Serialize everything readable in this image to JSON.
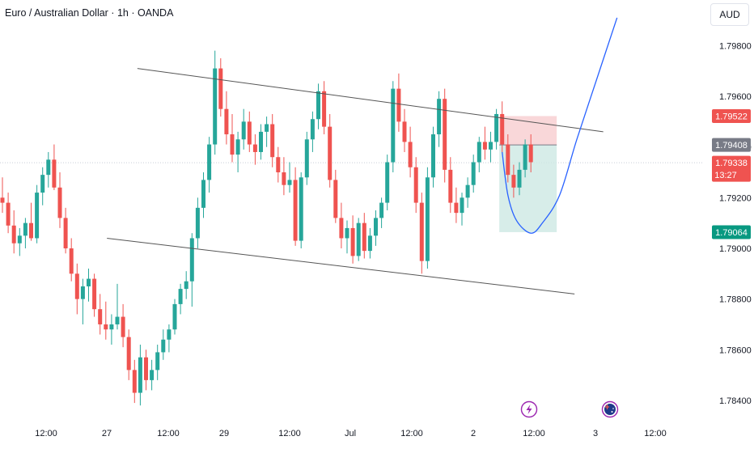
{
  "header": {
    "title": "Euro / Australian Dollar · 1h · OANDA",
    "currency": "AUD"
  },
  "colors": {
    "up": "#26a69a",
    "down": "#ef5350",
    "line": "#555555",
    "projection": "#2962ff",
    "stop_zone": "#f7c9cc",
    "target_zone": "#cde9e4",
    "neutral_tag": "#787b86"
  },
  "chart_data": {
    "type": "candlestick",
    "symbol": "EURAUD",
    "timeframe": "1h",
    "ylim": [
      1.7832,
      1.7998
    ],
    "y_ticks": [
      "1.79800",
      "1.79600",
      "1.79400",
      "1.79200",
      "1.79000",
      "1.78800",
      "1.78600",
      "1.78400"
    ],
    "x_ticks": [
      "12:00",
      "27",
      "12:00",
      "29",
      "12:00",
      "Jul",
      "12:00",
      "2",
      "12:00",
      "3",
      "12:00"
    ],
    "price_tags": [
      {
        "label": "1.79522",
        "value": 1.79522,
        "kind": "stop"
      },
      {
        "label": "1.79408",
        "value": 1.79408,
        "kind": "entry"
      },
      {
        "label": "1.79338",
        "value": 1.79338,
        "kind": "last"
      },
      {
        "label": "13:27",
        "value": null,
        "kind": "countdown"
      },
      {
        "label": "1.79064",
        "value": 1.79064,
        "kind": "target"
      }
    ],
    "channel": {
      "upper": [
        [
          0,
          1.7971
        ],
        [
          98,
          1.7946
        ]
      ],
      "lower": [
        [
          0,
          1.7904
        ],
        [
          98,
          1.7882
        ]
      ]
    },
    "trade": {
      "entry": 1.79408,
      "stop": 1.79522,
      "target": 1.79064,
      "start_index": 86.5,
      "end_index": 96.5
    },
    "projection": [
      [
        87,
        1.7938
      ],
      [
        88,
        1.7921
      ],
      [
        89.5,
        1.7911
      ],
      [
        92,
        1.7906
      ],
      [
        94,
        1.791
      ],
      [
        97,
        1.7921
      ],
      [
        100,
        1.7943
      ],
      [
        103.5,
        1.7967
      ],
      [
        107,
        1.7991
      ]
    ],
    "last_price": 1.79338,
    "candles": [
      [
        1.792,
        1.7928,
        1.7914,
        1.7918
      ],
      [
        1.7918,
        1.7922,
        1.7906,
        1.7909
      ],
      [
        1.7909,
        1.7915,
        1.7898,
        1.7902
      ],
      [
        1.7902,
        1.7908,
        1.7897,
        1.7905
      ],
      [
        1.7905,
        1.7912,
        1.79,
        1.791
      ],
      [
        1.791,
        1.7918,
        1.7903,
        1.7904
      ],
      [
        1.7904,
        1.7925,
        1.7902,
        1.7922
      ],
      [
        1.7922,
        1.7932,
        1.7917,
        1.7929
      ],
      [
        1.7929,
        1.7938,
        1.7924,
        1.7935
      ],
      [
        1.7935,
        1.7941,
        1.7923,
        1.7924
      ],
      [
        1.7924,
        1.793,
        1.7908,
        1.7912
      ],
      [
        1.7912,
        1.7916,
        1.7898,
        1.79
      ],
      [
        1.79,
        1.7904,
        1.7887,
        1.789
      ],
      [
        1.789,
        1.7894,
        1.7874,
        1.788
      ],
      [
        1.788,
        1.7888,
        1.787,
        1.7885
      ],
      [
        1.7885,
        1.7892,
        1.7879,
        1.7888
      ],
      [
        1.7888,
        1.789,
        1.7873,
        1.7876
      ],
      [
        1.7876,
        1.7882,
        1.7866,
        1.787
      ],
      [
        1.787,
        1.7879,
        1.7864,
        1.7868
      ],
      [
        1.7868,
        1.7874,
        1.7862,
        1.787
      ],
      [
        1.787,
        1.7886,
        1.7868,
        1.7873
      ],
      [
        1.7873,
        1.7878,
        1.7861,
        1.7865
      ],
      [
        1.7865,
        1.7868,
        1.7848,
        1.7852
      ],
      [
        1.7852,
        1.7856,
        1.7839,
        1.7843
      ],
      [
        1.7843,
        1.7862,
        1.7838,
        1.7857
      ],
      [
        1.7857,
        1.786,
        1.7844,
        1.7848
      ],
      [
        1.7848,
        1.7856,
        1.7844,
        1.7852
      ],
      [
        1.7852,
        1.7862,
        1.7848,
        1.7859
      ],
      [
        1.7859,
        1.7868,
        1.7856,
        1.7864
      ],
      [
        1.7864,
        1.787,
        1.7859,
        1.7868
      ],
      [
        1.7868,
        1.788,
        1.7866,
        1.7878
      ],
      [
        1.7878,
        1.7886,
        1.7874,
        1.7884
      ],
      [
        1.7884,
        1.7891,
        1.788,
        1.7887
      ],
      [
        1.7887,
        1.7906,
        1.7877,
        1.7904
      ],
      [
        1.7904,
        1.792,
        1.79,
        1.7916
      ],
      [
        1.7916,
        1.793,
        1.7912,
        1.7927
      ],
      [
        1.7927,
        1.7944,
        1.7922,
        1.7941
      ],
      [
        1.7941,
        1.7978,
        1.7937,
        1.7971
      ],
      [
        1.7971,
        1.7975,
        1.7952,
        1.7955
      ],
      [
        1.7955,
        1.7962,
        1.7941,
        1.7945
      ],
      [
        1.7945,
        1.7953,
        1.7934,
        1.7937
      ],
      [
        1.7937,
        1.7946,
        1.793,
        1.7943
      ],
      [
        1.7943,
        1.7955,
        1.7939,
        1.795
      ],
      [
        1.795,
        1.7954,
        1.7938,
        1.7941
      ],
      [
        1.7941,
        1.7945,
        1.7933,
        1.7938
      ],
      [
        1.7938,
        1.7949,
        1.7935,
        1.7946
      ],
      [
        1.7946,
        1.7952,
        1.794,
        1.7949
      ],
      [
        1.7949,
        1.7953,
        1.7932,
        1.7936
      ],
      [
        1.7936,
        1.794,
        1.7926,
        1.793
      ],
      [
        1.793,
        1.7936,
        1.7921,
        1.7925
      ],
      [
        1.7925,
        1.7934,
        1.7922,
        1.7927
      ],
      [
        1.7927,
        1.7932,
        1.7901,
        1.7903
      ],
      [
        1.7903,
        1.793,
        1.79,
        1.7928
      ],
      [
        1.7928,
        1.7946,
        1.7925,
        1.7943
      ],
      [
        1.7943,
        1.7954,
        1.7938,
        1.7951
      ],
      [
        1.7951,
        1.7965,
        1.7947,
        1.7962
      ],
      [
        1.7962,
        1.7966,
        1.7945,
        1.7948
      ],
      [
        1.7948,
        1.7953,
        1.7924,
        1.7927
      ],
      [
        1.7927,
        1.7931,
        1.791,
        1.7912
      ],
      [
        1.7912,
        1.7918,
        1.79,
        1.7904
      ],
      [
        1.7904,
        1.7911,
        1.7898,
        1.7908
      ],
      [
        1.7908,
        1.7913,
        1.7894,
        1.7897
      ],
      [
        1.7897,
        1.7912,
        1.7895,
        1.791
      ],
      [
        1.791,
        1.7914,
        1.7896,
        1.7899
      ],
      [
        1.7899,
        1.7908,
        1.7896,
        1.7905
      ],
      [
        1.7905,
        1.7915,
        1.7901,
        1.7912
      ],
      [
        1.7912,
        1.792,
        1.7908,
        1.7918
      ],
      [
        1.7918,
        1.7937,
        1.7915,
        1.7934
      ],
      [
        1.7934,
        1.7966,
        1.793,
        1.7963
      ],
      [
        1.7963,
        1.7969,
        1.7946,
        1.795
      ],
      [
        1.795,
        1.7955,
        1.7938,
        1.7942
      ],
      [
        1.7942,
        1.7948,
        1.7928,
        1.7932
      ],
      [
        1.7932,
        1.7936,
        1.7914,
        1.7918
      ],
      [
        1.7918,
        1.7922,
        1.789,
        1.7895
      ],
      [
        1.7895,
        1.7932,
        1.7892,
        1.7928
      ],
      [
        1.7928,
        1.7948,
        1.7924,
        1.7945
      ],
      [
        1.7945,
        1.7962,
        1.794,
        1.7959
      ],
      [
        1.7959,
        1.7963,
        1.7926,
        1.7931
      ],
      [
        1.7931,
        1.7936,
        1.7914,
        1.7918
      ],
      [
        1.7918,
        1.7924,
        1.791,
        1.7914
      ],
      [
        1.7914,
        1.7922,
        1.7909,
        1.792
      ],
      [
        1.792,
        1.7928,
        1.7916,
        1.7925
      ],
      [
        1.7925,
        1.7937,
        1.7922,
        1.7934
      ],
      [
        1.7934,
        1.7944,
        1.793,
        1.7942
      ],
      [
        1.7942,
        1.7948,
        1.7935,
        1.7939
      ],
      [
        1.7939,
        1.7946,
        1.7934,
        1.7942
      ],
      [
        1.7942,
        1.7955,
        1.7939,
        1.7953
      ],
      [
        1.7953,
        1.7958,
        1.7938,
        1.7941
      ],
      [
        1.7941,
        1.7945,
        1.7926,
        1.7929
      ],
      [
        1.7929,
        1.7933,
        1.792,
        1.7924
      ],
      [
        1.7924,
        1.7934,
        1.7921,
        1.7931
      ],
      [
        1.7931,
        1.7943,
        1.7928,
        1.7941
      ],
      [
        1.7941,
        1.7945,
        1.793,
        1.7934
      ]
    ]
  }
}
